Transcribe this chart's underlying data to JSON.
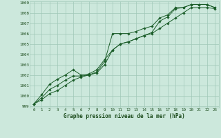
{
  "xlabel": "Graphe pression niveau de la mer (hPa)",
  "x": [
    0,
    1,
    2,
    3,
    4,
    5,
    6,
    7,
    8,
    9,
    10,
    11,
    12,
    13,
    14,
    15,
    16,
    17,
    18,
    19,
    20,
    21,
    22,
    23
  ],
  "line1": [
    999.2,
    999.8,
    1000.6,
    1001.0,
    1001.5,
    1001.9,
    1001.9,
    1002.0,
    1002.3,
    1003.3,
    1006.0,
    1006.0,
    1006.0,
    1006.2,
    1006.5,
    1006.7,
    1007.5,
    1007.8,
    1008.5,
    1008.5,
    1008.8,
    1008.8,
    1008.8,
    1008.5
  ],
  "line2": [
    999.2,
    1000.1,
    1001.1,
    1001.6,
    1002.0,
    1002.5,
    1002.0,
    1002.1,
    1002.5,
    1003.5,
    1004.4,
    1005.0,
    1005.2,
    1005.5,
    1005.8,
    1006.1,
    1007.2,
    1007.6,
    1008.4,
    1008.5,
    1008.8,
    1008.8,
    1008.8,
    1008.5
  ],
  "line3": [
    999.2,
    999.6,
    1000.2,
    1000.5,
    1001.0,
    1001.5,
    1001.8,
    1002.0,
    1002.2,
    1003.0,
    1004.4,
    1005.0,
    1005.2,
    1005.5,
    1005.8,
    1006.0,
    1006.5,
    1007.0,
    1007.5,
    1008.0,
    1008.5,
    1008.5,
    1008.5,
    1008.4
  ],
  "bg_color": "#cce8dc",
  "grid_color": "#a0c8b8",
  "line_color": "#1a5c28",
  "ylim_min": 999,
  "ylim_max": 1009,
  "yticks": [
    999,
    1000,
    1001,
    1002,
    1003,
    1004,
    1005,
    1006,
    1007,
    1008,
    1009
  ],
  "xticks": [
    0,
    1,
    2,
    3,
    4,
    5,
    6,
    7,
    8,
    9,
    10,
    11,
    12,
    13,
    14,
    15,
    16,
    17,
    18,
    19,
    20,
    21,
    22,
    23
  ],
  "marker": "D",
  "markersize": 1.8,
  "linewidth": 0.7,
  "tick_fontsize": 4.2,
  "xlabel_fontsize": 5.5
}
